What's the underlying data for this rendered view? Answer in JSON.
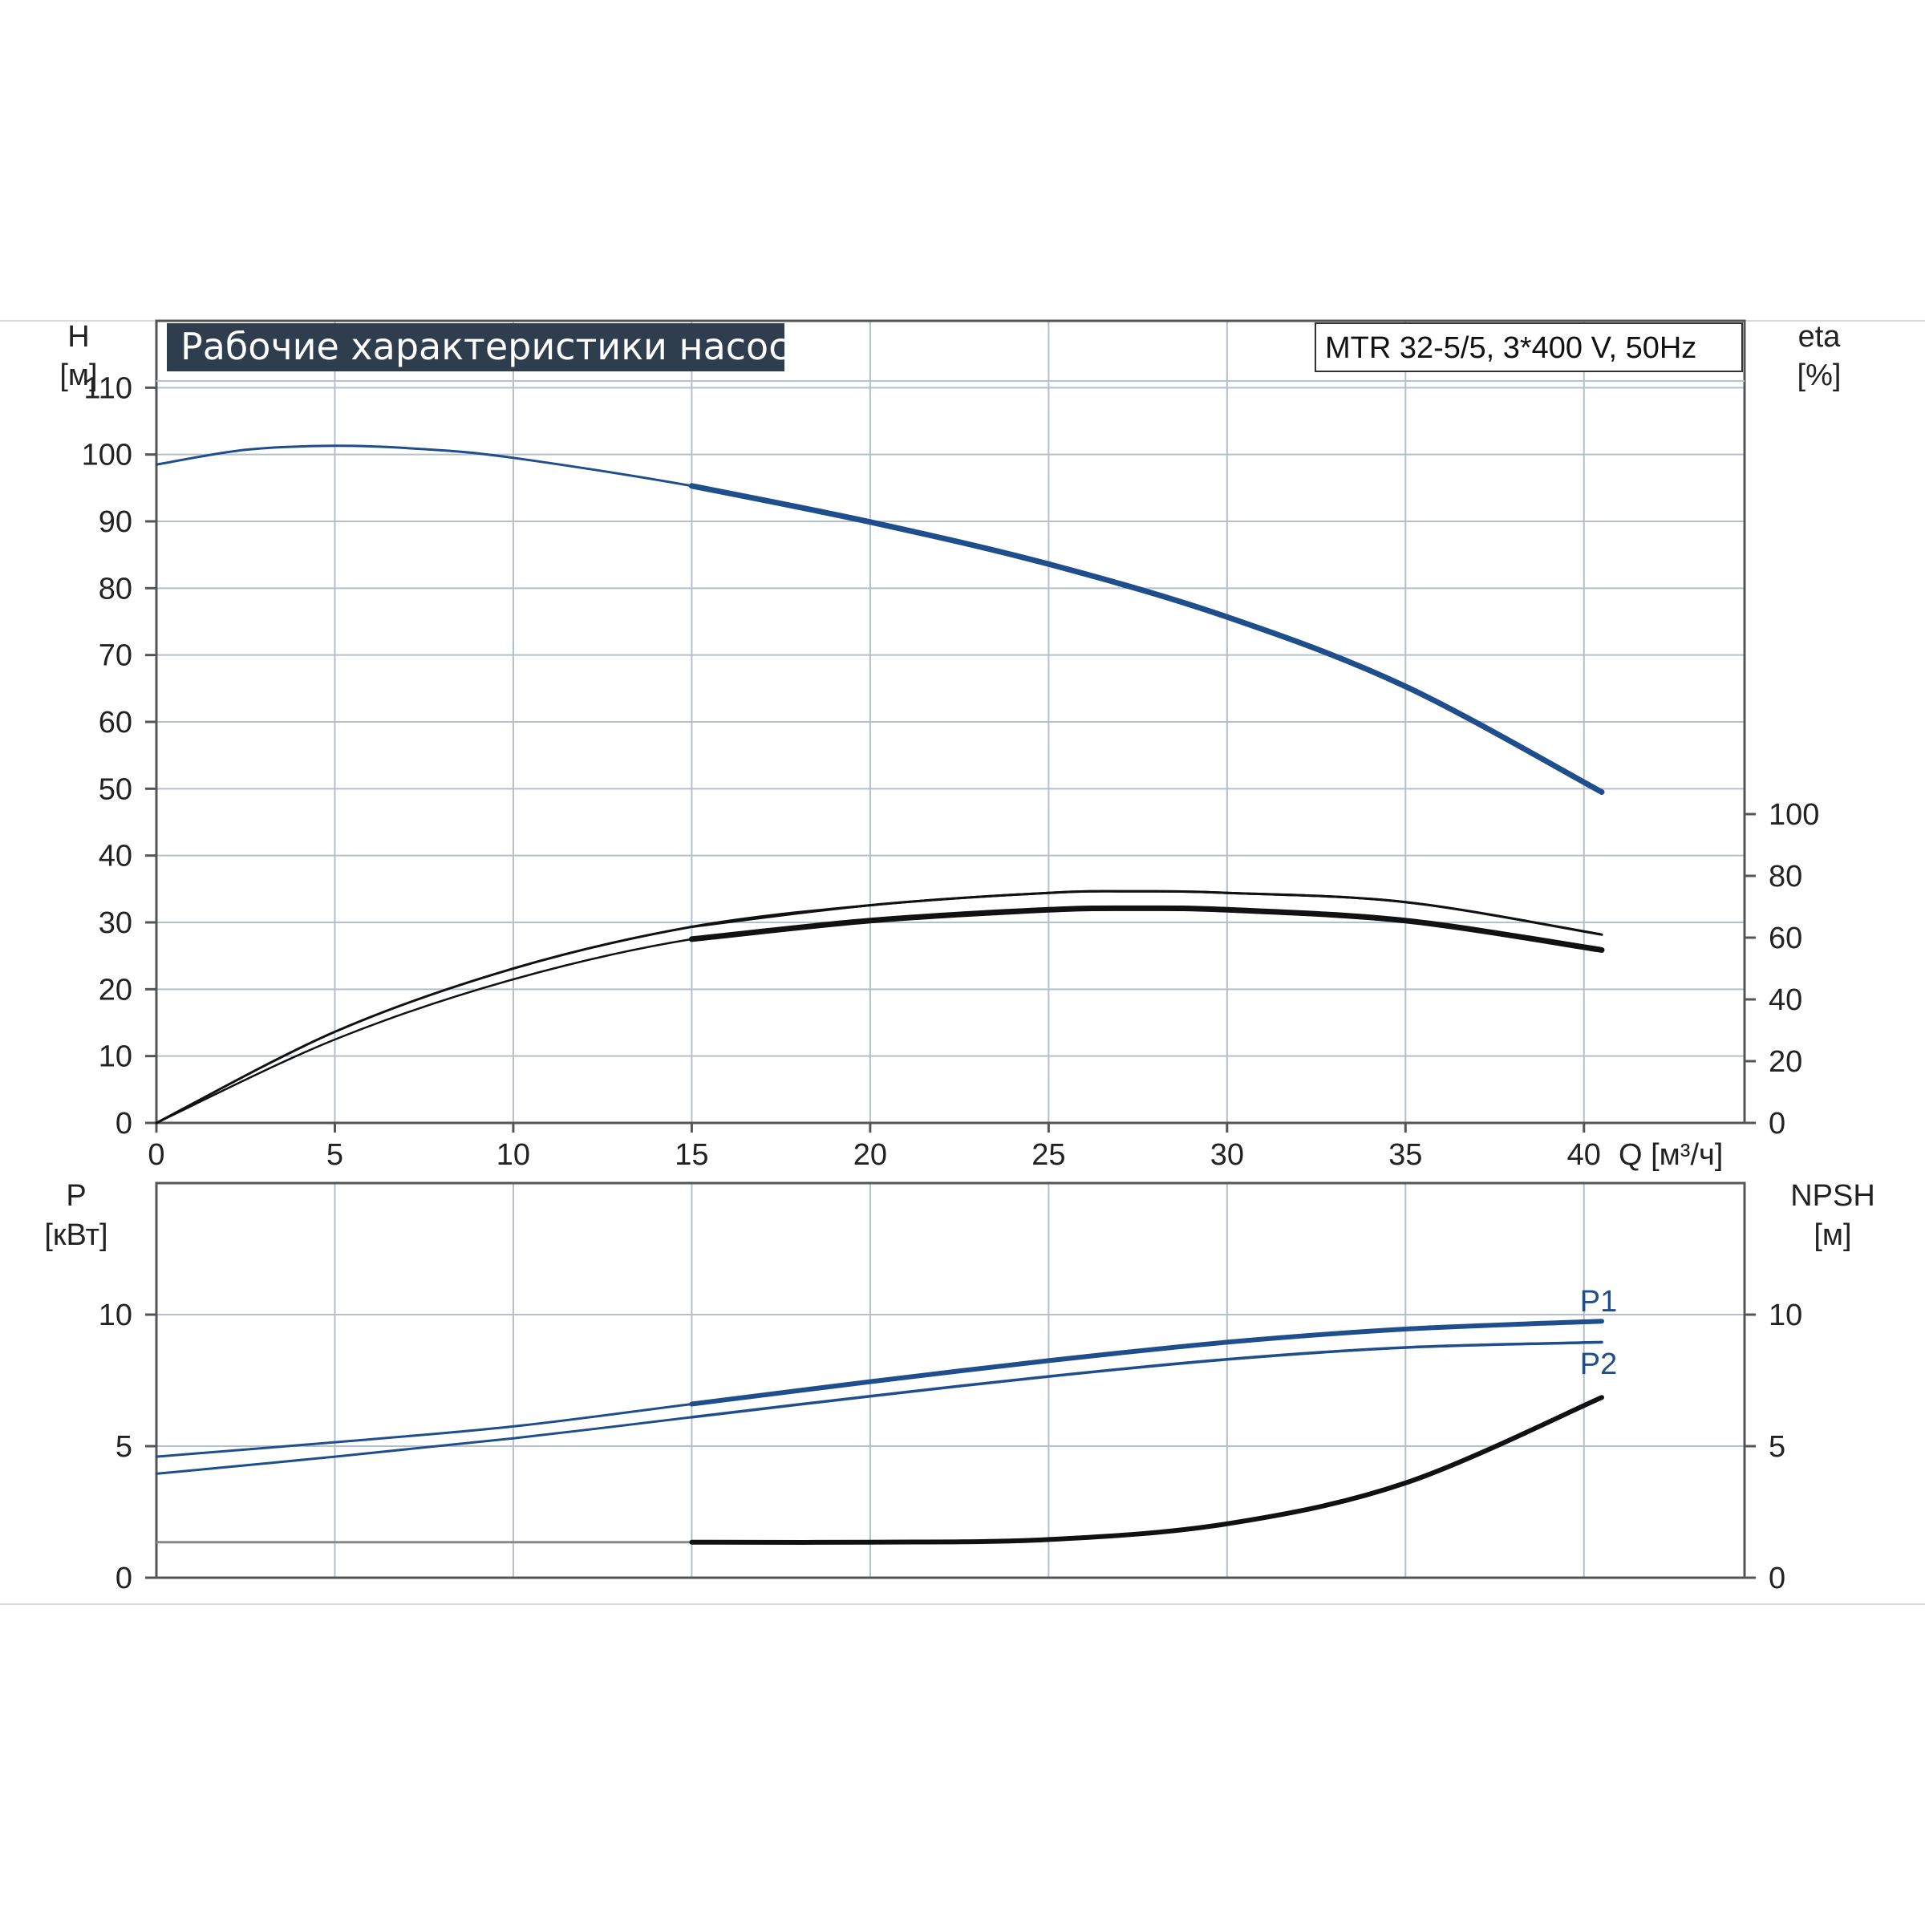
{
  "chart_data": [
    {
      "type": "line",
      "title": "Рабочие характеристики насоса",
      "model": "MTR 32-5/5, 3*400 V, 50Hz",
      "xlabel": "Q [м³/ч]",
      "ylabel_left": [
        "H",
        "[м]"
      ],
      "ylabel_right": [
        "eta",
        "[%]"
      ],
      "xlim": [
        0,
        44.5
      ],
      "ylim_left": [
        0,
        120
      ],
      "ylim_right": [
        0,
        100
      ],
      "x_ticks": [
        "0",
        "5",
        "10",
        "15",
        "20",
        "25",
        "30",
        "35",
        "40"
      ],
      "y_ticks_left": [
        "0",
        "10",
        "20",
        "30",
        "40",
        "50",
        "60",
        "70",
        "80",
        "90",
        "100",
        "110"
      ],
      "y_ticks_right": [
        "0",
        "20",
        "40",
        "60",
        "80",
        "100"
      ],
      "grid": true,
      "series": [
        {
          "x": [
            0,
            2.5,
            5,
            7.5,
            10,
            15,
            20,
            25,
            30,
            35,
            40.5
          ],
          "y": [
            98.5,
            100.7,
            101.3,
            100.8,
            99.5,
            95.3,
            89.9,
            83.6,
            75.7,
            65.3,
            49.5
          ],
          "axis": "left",
          "color": "#1f4e8c"
        },
        {
          "x": [
            0,
            5,
            10,
            15,
            20,
            25,
            27.5,
            30,
            35,
            40.5
          ],
          "y": [
            0,
            29.5,
            50,
            63.5,
            70.5,
            74.5,
            75,
            74.5,
            71.5,
            61
          ],
          "axis": "right",
          "color": "#111111"
        },
        {
          "x": [
            0,
            5,
            10,
            15,
            20,
            25,
            27.5,
            30,
            35,
            40.5
          ],
          "y": [
            0,
            27,
            46.5,
            59.5,
            65.5,
            69,
            69.5,
            69,
            65.5,
            56
          ],
          "axis": "right",
          "color": "#111111"
        }
      ]
    },
    {
      "type": "line",
      "ylabel_left": [
        "P",
        "[кВт]"
      ],
      "ylabel_right": [
        "NPSH",
        "[м]"
      ],
      "xlim": [
        0,
        44.5
      ],
      "ylim_left": [
        0,
        15
      ],
      "ylim_right": [
        0,
        15
      ],
      "y_ticks_left": [
        "0",
        "5",
        "10"
      ],
      "y_ticks_right": [
        "0",
        "5",
        "10"
      ],
      "grid": true,
      "series": [
        {
          "name": "P1",
          "x": [
            0,
            5,
            10,
            15,
            20,
            25,
            30,
            35,
            40.5
          ],
          "y": [
            4.6,
            5.15,
            5.75,
            6.6,
            7.45,
            8.25,
            8.95,
            9.45,
            9.75
          ],
          "axis": "left",
          "color": "#1f4e8c"
        },
        {
          "name": "P2",
          "x": [
            0,
            5,
            10,
            15,
            20,
            25,
            30,
            35,
            40.5
          ],
          "y": [
            3.95,
            4.6,
            5.3,
            6.1,
            6.9,
            7.65,
            8.3,
            8.75,
            8.95
          ],
          "axis": "left",
          "color": "#1f4e8c"
        },
        {
          "x": [
            0,
            15,
            20,
            25,
            30,
            35,
            40.5
          ],
          "y": [
            1.35,
            1.35,
            1.35,
            1.45,
            2.05,
            3.6,
            6.85
          ],
          "axis": "right",
          "color": "#111111"
        }
      ]
    }
  ]
}
